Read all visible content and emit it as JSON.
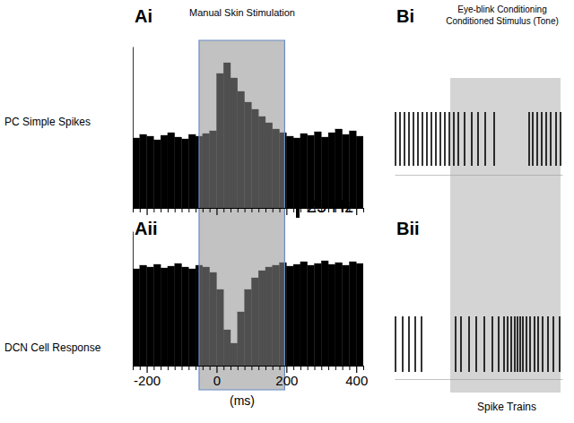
{
  "chart_data": [
    {
      "type": "histogram",
      "panel": "Ai",
      "title": "Manual Skin Stimulation",
      "ylabel": "PC Simple Spikes",
      "bins": [
        -240,
        -220,
        -200,
        -180,
        -160,
        -140,
        -120,
        -100,
        -80,
        -60,
        -40,
        -20,
        0,
        20,
        40,
        60,
        80,
        100,
        120,
        140,
        160,
        180,
        200,
        220,
        240,
        260,
        280,
        300,
        320,
        340,
        360,
        380,
        400,
        420
      ],
      "values": [
        78,
        82,
        80,
        76,
        81,
        84,
        79,
        77,
        82,
        80,
        83,
        86,
        150,
        162,
        145,
        130,
        118,
        110,
        102,
        95,
        88,
        84,
        80,
        78,
        83,
        81,
        85,
        79,
        84,
        88,
        82,
        86,
        80
      ],
      "color": "#000000",
      "xlim": [
        -240,
        420
      ],
      "ylim": [
        0,
        180
      ],
      "xticks": [
        -200,
        0,
        200,
        400
      ],
      "minor_xticks": [
        -240,
        -220,
        -180,
        -160,
        -140,
        -120,
        -100,
        -80,
        -60,
        -40,
        -20,
        20,
        40,
        60,
        80,
        100,
        120,
        140,
        160,
        180,
        220,
        240,
        260,
        280,
        300,
        320,
        340,
        360,
        380,
        420
      ],
      "tick_labels": false,
      "stimulus": [
        -50,
        195
      ],
      "scale_bar": {
        "value": 25,
        "label": "25 Hz"
      }
    },
    {
      "type": "histogram",
      "panel": "Aii",
      "ylabel": "DCN Cell Response",
      "xlabel": "(ms)",
      "bins": [
        -240,
        -220,
        -200,
        -180,
        -160,
        -140,
        -120,
        -100,
        -80,
        -60,
        -40,
        -20,
        0,
        20,
        40,
        60,
        80,
        100,
        120,
        140,
        160,
        180,
        200,
        220,
        240,
        260,
        280,
        300,
        320,
        340,
        360,
        380,
        400,
        420
      ],
      "values": [
        108,
        112,
        110,
        113,
        109,
        111,
        114,
        110,
        108,
        112,
        110,
        104,
        85,
        40,
        25,
        60,
        85,
        98,
        106,
        110,
        112,
        115,
        111,
        113,
        116,
        112,
        114,
        117,
        113,
        115,
        112,
        116,
        114
      ],
      "color": "#000000",
      "xlim": [
        -240,
        420
      ],
      "ylim": [
        0,
        150
      ],
      "xticks": [
        -200,
        0,
        200,
        400
      ],
      "minor_xticks": [
        -240,
        -220,
        -180,
        -160,
        -140,
        -120,
        -100,
        -80,
        -60,
        -40,
        -20,
        20,
        40,
        60,
        80,
        100,
        120,
        140,
        160,
        180,
        220,
        240,
        260,
        280,
        300,
        320,
        340,
        360,
        380,
        420
      ],
      "tick_labels": "x",
      "stimulus": [
        -50,
        195
      ]
    },
    {
      "type": "raster",
      "panel": "Bi",
      "title": [
        "Eye-blink Conditioning",
        "Conditioned Stimulus (Tone)"
      ],
      "x": [
        -61,
        -56,
        -51,
        -46,
        -41,
        -36,
        -31,
        -26,
        -21,
        -16,
        -11,
        -6,
        -1,
        4,
        9,
        16,
        24,
        31,
        39,
        49,
        88,
        92,
        97,
        102,
        107,
        112,
        118,
        123
      ],
      "color": "#000000",
      "xlim": [
        -62,
        125
      ],
      "stimulus": [
        0,
        123
      ]
    },
    {
      "type": "raster",
      "panel": "Bii",
      "xlabel": "Spike Trains",
      "x": [
        -61,
        -53,
        -46,
        -39,
        -32,
        6,
        12,
        21,
        29,
        38,
        47,
        54,
        60,
        64,
        68,
        72,
        75,
        78,
        81,
        85,
        89,
        94,
        98,
        103,
        109,
        115,
        122
      ],
      "color": "#000000",
      "xlim": [
        -62,
        125
      ],
      "stimulus": [
        0,
        123
      ]
    }
  ]
}
